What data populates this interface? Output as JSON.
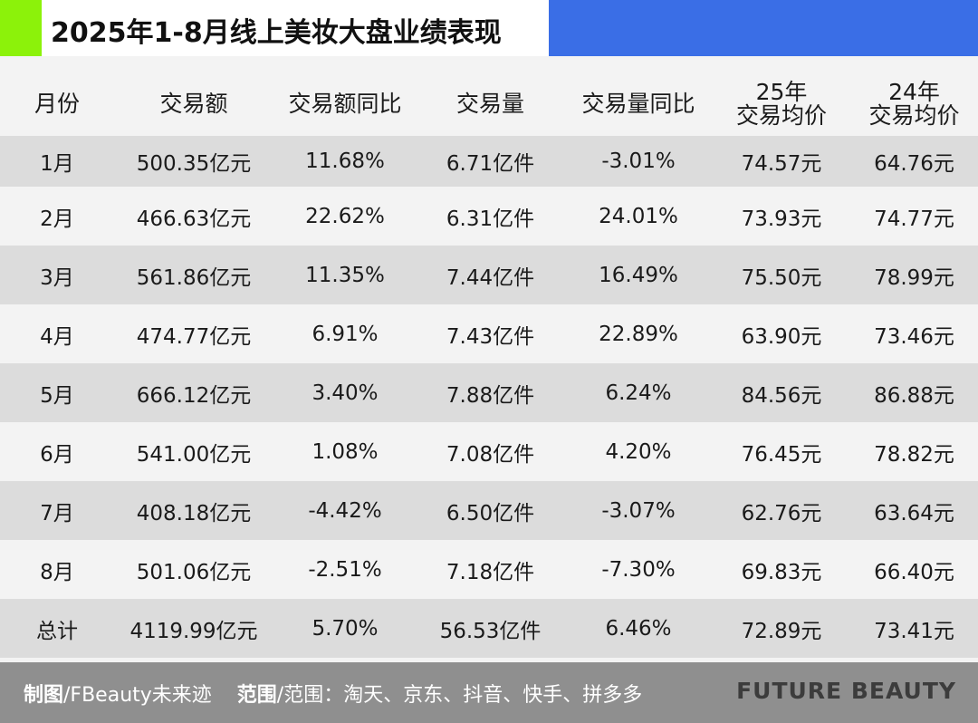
{
  "title": "2025年1-8月线上美妆大盘业绩表现",
  "colors": {
    "accent_green": "#8cf20a",
    "accent_blue": "#3a6ee6",
    "footer_bg": "#8f8f8f",
    "stripe": "#dcdcdc"
  },
  "table": {
    "headers": [
      {
        "line1": "月份",
        "line2": ""
      },
      {
        "line1": "交易额",
        "line2": ""
      },
      {
        "line1": "交易额同比",
        "line2": ""
      },
      {
        "line1": "交易量",
        "line2": ""
      },
      {
        "line1": "交易量同比",
        "line2": ""
      },
      {
        "line1": "25年",
        "line2": "交易均价"
      },
      {
        "line1": "24年",
        "line2": "交易均价"
      }
    ],
    "rows": [
      [
        "1月",
        "500.35亿元",
        "11.68%",
        "6.71亿件",
        "-3.01%",
        "74.57元",
        "64.76元"
      ],
      [
        "2月",
        "466.63亿元",
        "22.62%",
        "6.31亿件",
        "24.01%",
        "73.93元",
        "74.77元"
      ],
      [
        "3月",
        "561.86亿元",
        "11.35%",
        "7.44亿件",
        "16.49%",
        "75.50元",
        "78.99元"
      ],
      [
        "4月",
        "474.77亿元",
        "6.91%",
        "7.43亿件",
        "22.89%",
        "63.90元",
        "73.46元"
      ],
      [
        "5月",
        "666.12亿元",
        "3.40%",
        "7.88亿件",
        "6.24%",
        "84.56元",
        "86.88元"
      ],
      [
        "6月",
        "541.00亿元",
        "1.08%",
        "7.08亿件",
        "4.20%",
        "76.45元",
        "78.82元"
      ],
      [
        "7月",
        "408.18亿元",
        "-4.42%",
        "6.50亿件",
        "-3.07%",
        "62.76元",
        "63.64元"
      ],
      [
        "8月",
        "501.06亿元",
        "-2.51%",
        "7.18亿件",
        "-7.30%",
        "69.83元",
        "66.40元"
      ],
      [
        "总计",
        "4119.99亿元",
        "5.70%",
        "56.53亿件",
        "6.46%",
        "72.89元",
        "73.41元"
      ]
    ]
  },
  "footer": {
    "credit_label": "制图",
    "credit_value": "/FBeauty未来迹",
    "scope_label": "范围",
    "scope_value": "/范围：淘天、京东、抖音、快手、拼多多",
    "brand": "FUTURE BEAUTY"
  }
}
